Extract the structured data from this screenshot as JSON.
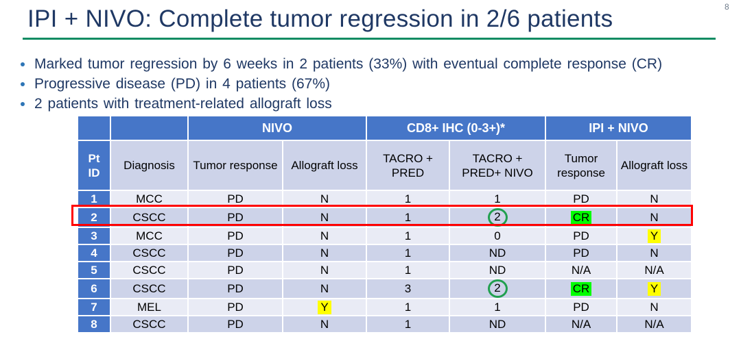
{
  "slide": {
    "page_number": "8",
    "title": "IPI + NIVO: Complete tumor regression in 2/6 patients",
    "bullets": [
      {
        "text": "Marked tumor regression by 6 weeks in 2 patients (33%) with eventual complete response (CR)"
      },
      {
        "text": "Progressive disease (PD) in 4 patients (67%)"
      },
      {
        "text": "2 patients with treatment-related allograft loss"
      }
    ]
  },
  "colors": {
    "title_text": "#1F3864",
    "bullet_dot": "#2E75B6",
    "divider": "#0E8C62",
    "header_blue": "#4676C8",
    "band_light": "#E9EBF5",
    "band_dark": "#CDD3E9",
    "highlight_green": "#00FF00",
    "highlight_yellow": "#FFFF00",
    "circle_green": "#21A04F",
    "outline_red": "#FF0000"
  },
  "table": {
    "group_headers": [
      {
        "label": "NIVO",
        "span": 2
      },
      {
        "label": "CD8+ IHC (0-3+)*",
        "span": 2
      },
      {
        "label": "IPI + NIVO",
        "span": 2
      }
    ],
    "column_headers": [
      "Pt ID",
      "Diagnosis",
      "Tumor response",
      "Allograft loss",
      "TACRO + PRED",
      "TACRO + PRED+ NIVO",
      "Tumor response",
      "Allograft loss"
    ],
    "rows": [
      {
        "pt_id": "1",
        "cells": [
          {
            "text": "MCC"
          },
          {
            "text": "PD"
          },
          {
            "text": "N"
          },
          {
            "text": "1"
          },
          {
            "text": "1"
          },
          {
            "text": "PD"
          },
          {
            "text": "N"
          }
        ]
      },
      {
        "pt_id": "2",
        "outlined": true,
        "cells": [
          {
            "text": "CSCC"
          },
          {
            "text": "PD"
          },
          {
            "text": "N"
          },
          {
            "text": "1"
          },
          {
            "text": "2",
            "circled": true
          },
          {
            "text": "CR",
            "highlight": "green"
          },
          {
            "text": "N"
          }
        ]
      },
      {
        "pt_id": "3",
        "cells": [
          {
            "text": "MCC"
          },
          {
            "text": "PD"
          },
          {
            "text": "N"
          },
          {
            "text": "1"
          },
          {
            "text": "0"
          },
          {
            "text": "PD"
          },
          {
            "text": "Y",
            "highlight": "yellow"
          }
        ]
      },
      {
        "pt_id": "4",
        "cells": [
          {
            "text": "CSCC"
          },
          {
            "text": "PD"
          },
          {
            "text": "N"
          },
          {
            "text": "1"
          },
          {
            "text": "ND"
          },
          {
            "text": "PD"
          },
          {
            "text": "N"
          }
        ]
      },
      {
        "pt_id": "5",
        "cells": [
          {
            "text": "CSCC"
          },
          {
            "text": "PD"
          },
          {
            "text": "N"
          },
          {
            "text": "1"
          },
          {
            "text": "ND"
          },
          {
            "text": "N/A"
          },
          {
            "text": "N/A"
          }
        ]
      },
      {
        "pt_id": "6",
        "cells": [
          {
            "text": "CSCC"
          },
          {
            "text": "PD"
          },
          {
            "text": "N"
          },
          {
            "text": "3"
          },
          {
            "text": "2",
            "circled": true
          },
          {
            "text": "CR",
            "highlight": "green"
          },
          {
            "text": "Y",
            "highlight": "yellow"
          }
        ]
      },
      {
        "pt_id": "7",
        "cells": [
          {
            "text": "MEL"
          },
          {
            "text": "PD"
          },
          {
            "text": "Y",
            "highlight": "yellow"
          },
          {
            "text": "1"
          },
          {
            "text": "1"
          },
          {
            "text": "PD"
          },
          {
            "text": "N"
          }
        ]
      },
      {
        "pt_id": "8",
        "cells": [
          {
            "text": "CSCC"
          },
          {
            "text": "PD"
          },
          {
            "text": "N"
          },
          {
            "text": "1"
          },
          {
            "text": "ND"
          },
          {
            "text": "N/A"
          },
          {
            "text": "N/A"
          }
        ]
      }
    ]
  }
}
